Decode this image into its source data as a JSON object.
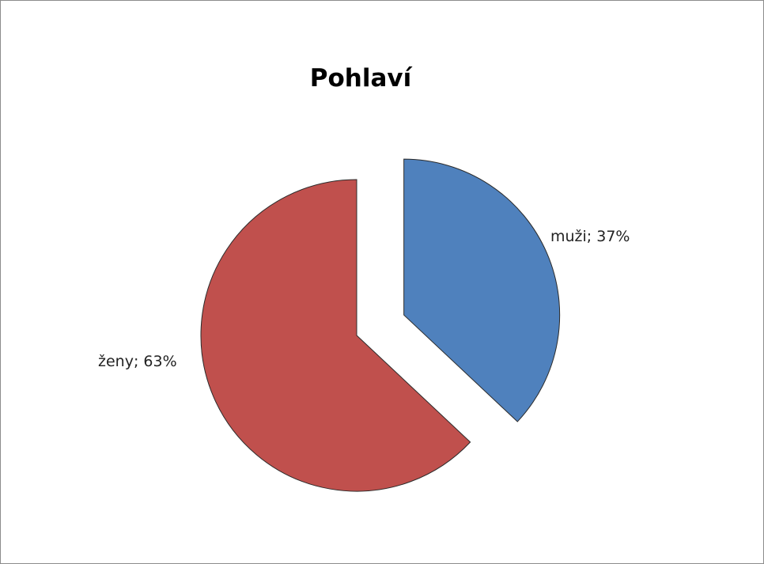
{
  "chart_data": {
    "type": "pie",
    "title": "Pohlaví",
    "slices": [
      {
        "label": "muži",
        "value": 37,
        "label_text": "muži; 37%",
        "color": "#4f81bd",
        "exploded": true
      },
      {
        "label": "ženy",
        "value": 63,
        "label_text": "ženy; 63%",
        "color": "#c0504d",
        "exploded": false
      }
    ],
    "legend": "none"
  }
}
